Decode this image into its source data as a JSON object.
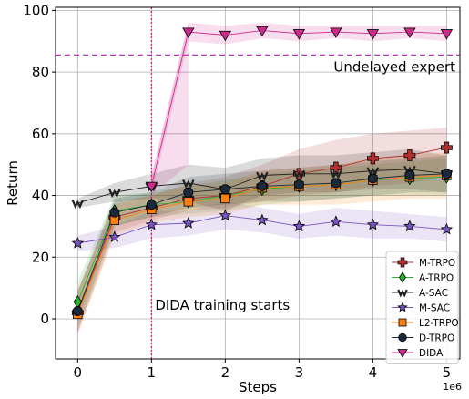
{
  "chart_data": {
    "type": "line",
    "title": "",
    "xlabel": "Steps",
    "ylabel": "Return",
    "x_multiplier_label": "1e6",
    "xlim": [
      -0.3,
      5.18
    ],
    "ylim": [
      -13,
      101
    ],
    "xticks": [
      0,
      1,
      2,
      3,
      4,
      5
    ],
    "yticks": [
      0,
      20,
      40,
      60,
      80,
      100
    ],
    "grid": true,
    "legend_position": "lower-right",
    "annotations": {
      "reference_line_label": "Undelayed expert",
      "reference_line_value": 85.5,
      "reference_line_color": "#c030c0",
      "vertical_line_label": "DIDA training starts",
      "vertical_line_x": 1.0,
      "vertical_line_color": "#c0206a"
    },
    "series": [
      {
        "name": "M-TRPO",
        "color": "#b03030",
        "marker": "plus",
        "x": [
          0,
          0.5,
          1,
          1.5,
          2,
          2.5,
          3,
          3.5,
          4,
          4.5,
          5
        ],
        "values": [
          2,
          33,
          36,
          39,
          40,
          43,
          47,
          49,
          52,
          53,
          55.5
        ],
        "band": [
          [
            -5,
            9
          ],
          [
            28,
            38
          ],
          [
            32,
            40
          ],
          [
            35,
            44
          ],
          [
            36,
            46
          ],
          [
            38,
            50
          ],
          [
            40,
            55
          ],
          [
            41,
            58
          ],
          [
            43,
            60
          ],
          [
            44,
            61
          ],
          [
            46,
            62
          ]
        ]
      },
      {
        "name": "A-TRPO",
        "color": "#30b030",
        "marker": "diamond",
        "x": [
          0,
          0.5,
          1,
          1.5,
          2,
          2.5,
          3,
          3.5,
          4,
          4.5,
          5
        ],
        "values": [
          5.5,
          35,
          37,
          38,
          40,
          42,
          43,
          43.5,
          45,
          45.5,
          46
        ],
        "band": [
          [
            -1,
            12
          ],
          [
            30,
            40
          ],
          [
            33,
            41
          ],
          [
            34,
            43
          ],
          [
            35,
            45
          ],
          [
            37,
            47
          ],
          [
            38,
            48
          ],
          [
            39,
            49
          ],
          [
            40,
            50
          ],
          [
            40,
            51
          ],
          [
            40,
            52
          ]
        ]
      },
      {
        "name": "A-SAC",
        "color": "#222222",
        "marker": "w",
        "x": [
          0,
          0.5,
          1,
          1.5,
          2,
          2.5,
          3,
          3.5,
          4,
          4.5,
          5
        ],
        "values": [
          37.5,
          41,
          43,
          44,
          42,
          46.5,
          47,
          47,
          48,
          48.5,
          47
        ],
        "band": [
          [
            36,
            39
          ],
          [
            38,
            44
          ],
          [
            39,
            47
          ],
          [
            38,
            50
          ],
          [
            35,
            49
          ],
          [
            40,
            52
          ],
          [
            41,
            53
          ],
          [
            41,
            53
          ],
          [
            42,
            54
          ],
          [
            42,
            55
          ],
          [
            41,
            53
          ]
        ]
      },
      {
        "name": "M-SAC",
        "color": "#7a55c0",
        "marker": "star",
        "x": [
          0,
          0.5,
          1,
          1.5,
          2,
          2.5,
          3,
          3.5,
          4,
          4.5,
          5
        ],
        "values": [
          24.5,
          26.5,
          30.5,
          31,
          33.5,
          32,
          30,
          31.5,
          30.5,
          30,
          29
        ],
        "band": [
          [
            22,
            27
          ],
          [
            23,
            30
          ],
          [
            26,
            35
          ],
          [
            27,
            35
          ],
          [
            29,
            38
          ],
          [
            28,
            36
          ],
          [
            26,
            34
          ],
          [
            27,
            36
          ],
          [
            26,
            35
          ],
          [
            26,
            34
          ],
          [
            25,
            33
          ]
        ]
      },
      {
        "name": "L2-TRPO",
        "color": "#ff7f0e",
        "marker": "square",
        "x": [
          0,
          0.5,
          1,
          1.5,
          2,
          2.5,
          3,
          3.5,
          4,
          4.5,
          5
        ],
        "values": [
          1.5,
          32,
          35.5,
          38,
          39,
          42.5,
          43,
          43.5,
          45,
          46,
          46.5
        ],
        "band": [
          [
            -5,
            9
          ],
          [
            27,
            37
          ],
          [
            31,
            40
          ],
          [
            33,
            43
          ],
          [
            34,
            44
          ],
          [
            37,
            48
          ],
          [
            37,
            49
          ],
          [
            37,
            50
          ],
          [
            38,
            52
          ],
          [
            39,
            53
          ],
          [
            39,
            54
          ]
        ]
      },
      {
        "name": "D-TRPO",
        "color": "#1a2a3a",
        "marker": "circle",
        "x": [
          0,
          0.5,
          1,
          1.5,
          2,
          2.5,
          3,
          3.5,
          4,
          4.5,
          5
        ],
        "values": [
          2.5,
          34.5,
          37,
          41,
          42,
          43,
          43.5,
          44,
          45.5,
          46.5,
          47
        ],
        "band": [
          [
            -4,
            9
          ],
          [
            30,
            39
          ],
          [
            33,
            41
          ],
          [
            36,
            46
          ],
          [
            37,
            47
          ],
          [
            38,
            48
          ],
          [
            38,
            49
          ],
          [
            39,
            50
          ],
          [
            40,
            51
          ],
          [
            41,
            52
          ],
          [
            41,
            53
          ]
        ]
      },
      {
        "name": "DIDA",
        "color": "#cc2a8c",
        "marker": "triangle-down",
        "x": [
          1,
          1.5,
          2,
          2.5,
          3,
          3.5,
          4,
          4.5,
          5
        ],
        "values": [
          43,
          93,
          92,
          93.5,
          92.5,
          93,
          92.5,
          93,
          92.5
        ],
        "band": [
          [
            40,
            46
          ],
          [
            90,
            96
          ],
          [
            89,
            95
          ],
          [
            91,
            96
          ],
          [
            90,
            95
          ],
          [
            91,
            95
          ],
          [
            90,
            95
          ],
          [
            91,
            95
          ],
          [
            90,
            95
          ]
        ]
      }
    ],
    "extra_band": {
      "color": "#cc2a8c",
      "x": [
        1,
        1.5
      ],
      "lower": [
        40,
        50
      ],
      "upper": [
        47,
        96
      ]
    }
  }
}
